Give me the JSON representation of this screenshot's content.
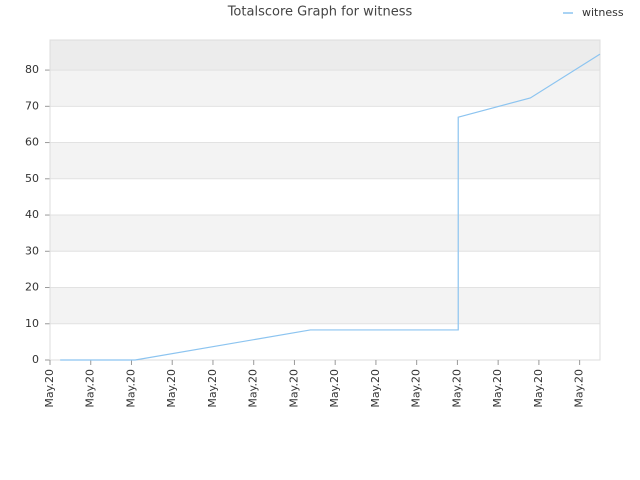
{
  "chart_data": {
    "type": "line",
    "title": "Totalscore Graph for witness",
    "x": [
      0.25,
      2.09,
      6.39,
      10.02,
      10.02,
      11.79,
      13.5
    ],
    "series": [
      {
        "name": "witness",
        "color": "#8cc4f0",
        "values": [
          0,
          0,
          8.3,
          8.3,
          67,
          72.3,
          84.4
        ]
      }
    ],
    "xlim": [
      0,
      13.5
    ],
    "xticks": [
      {
        "value": 0,
        "label": "May.20"
      },
      {
        "value": 1,
        "label": "May.20"
      },
      {
        "value": 2,
        "label": "May.20"
      },
      {
        "value": 3,
        "label": "May.20"
      },
      {
        "value": 4,
        "label": "May.20"
      },
      {
        "value": 5,
        "label": "May.20"
      },
      {
        "value": 6,
        "label": "May.20"
      },
      {
        "value": 7,
        "label": "May.20"
      },
      {
        "value": 8,
        "label": "May.20"
      },
      {
        "value": 9,
        "label": "May.20"
      },
      {
        "value": 10,
        "label": "May.20"
      },
      {
        "value": 11,
        "label": "May.20"
      },
      {
        "value": 12,
        "label": "May.20"
      },
      {
        "value": 13,
        "label": "May.20"
      }
    ],
    "ylim": [
      0,
      88.3
    ],
    "yticks": [
      0,
      10,
      20,
      30,
      40,
      50,
      60,
      70,
      80
    ],
    "grid": true,
    "legend": "top-right"
  }
}
